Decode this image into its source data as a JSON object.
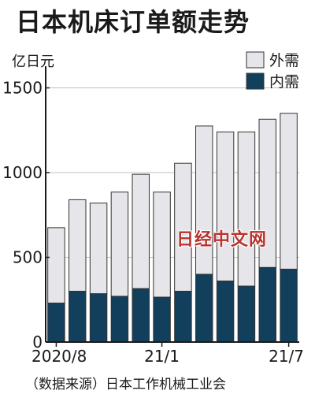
{
  "title": "日本机床订单额走势",
  "unit_label": "亿日元",
  "source": "（数据来源）日本工作机械工业会",
  "watermark": "日经中文网",
  "legend": {
    "foreign": "外需",
    "domestic": "内需"
  },
  "colors": {
    "foreign": "#e6e6ea",
    "domestic": "#123f5b",
    "axis": "#1a1a1a",
    "grid": "#bfbfbf"
  },
  "chart_data": {
    "type": "bar",
    "stacked": true,
    "categories": [
      "2020/8",
      "",
      "",
      "",
      "",
      "21/1",
      "",
      "",
      "",
      "",
      "",
      "21/7"
    ],
    "series": [
      {
        "name": "内需",
        "values": [
          230,
          300,
          285,
          270,
          315,
          265,
          300,
          400,
          360,
          330,
          440,
          430
        ]
      },
      {
        "name": "外需",
        "values": [
          445,
          540,
          535,
          615,
          675,
          620,
          755,
          875,
          880,
          910,
          875,
          920
        ]
      }
    ],
    "ylim": [
      0,
      1600
    ],
    "yticks": [
      0,
      500,
      1000,
      1500
    ],
    "grid": true,
    "legend_position": "top-right"
  }
}
